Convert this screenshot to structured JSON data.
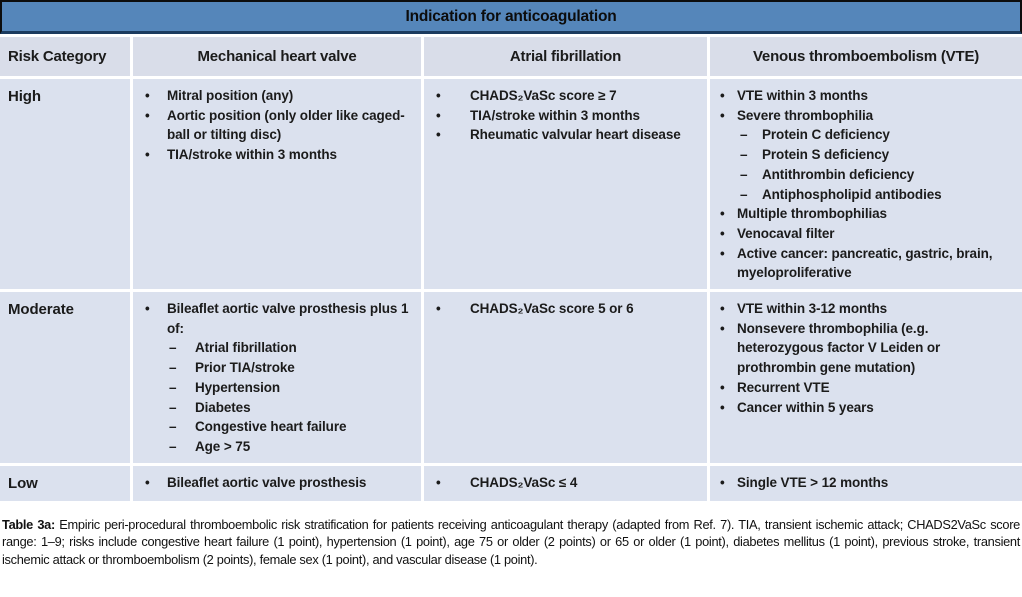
{
  "title": "Indication for anticoagulation",
  "columns": [
    "Risk Category",
    "Mechanical heart valve",
    "Atrial fibrillation",
    "Venous thromboembolism (VTE)"
  ],
  "markers": {
    "1": "•",
    "2": "–"
  },
  "rows": [
    {
      "category": "High",
      "cells": {
        "mechanical": [
          {
            "level": 1,
            "text": "Mitral position (any)"
          },
          {
            "level": 1,
            "text": "Aortic position (only older like caged-ball or tilting disc)"
          },
          {
            "level": 1,
            "text": "TIA/stroke within 3 months"
          }
        ],
        "afib": [
          {
            "level": 1,
            "text": "CHADS₂VaSc score ≥ 7"
          },
          {
            "level": 1,
            "text": "TIA/stroke within 3 months"
          },
          {
            "level": 1,
            "text": "Rheumatic valvular heart disease"
          }
        ],
        "vte": [
          {
            "level": 1,
            "text": "VTE within 3 months"
          },
          {
            "level": 1,
            "text": "Severe thrombophilia"
          },
          {
            "level": 2,
            "text": "Protein C deficiency"
          },
          {
            "level": 2,
            "text": "Protein S deficiency"
          },
          {
            "level": 2,
            "text": "Antithrombin deficiency"
          },
          {
            "level": 2,
            "text": "Antiphospholipid antibodies"
          },
          {
            "level": 1,
            "text": "Multiple thrombophilias"
          },
          {
            "level": 1,
            "text": "Venocaval filter"
          },
          {
            "level": 1,
            "text": "Active cancer: pancreatic, gastric, brain, myeloproliferative"
          }
        ]
      }
    },
    {
      "category": "Moderate",
      "cells": {
        "mechanical": [
          {
            "level": 1,
            "text": "Bileaflet aortic valve prosthesis plus 1 of:"
          },
          {
            "level": 2,
            "text": "Atrial fibrillation"
          },
          {
            "level": 2,
            "text": "Prior TIA/stroke"
          },
          {
            "level": 2,
            "text": "Hypertension"
          },
          {
            "level": 2,
            "text": "Diabetes"
          },
          {
            "level": 2,
            "text": "Congestive heart failure"
          },
          {
            "level": 2,
            "text": "Age > 75"
          }
        ],
        "afib": [
          {
            "level": 1,
            "text": "CHADS₂VaSc score 5 or 6"
          }
        ],
        "vte": [
          {
            "level": 1,
            "text": "VTE within 3-12 months"
          },
          {
            "level": 1,
            "text": "Nonsevere thrombophilia (e.g. heterozygous factor V Leiden or prothrombin gene mutation)"
          },
          {
            "level": 1,
            "text": "Recurrent VTE"
          },
          {
            "level": 1,
            "text": "Cancer within 5 years"
          }
        ]
      }
    },
    {
      "category": "Low",
      "cells": {
        "mechanical": [
          {
            "level": 1,
            "text": "Bileaflet aortic valve prosthesis"
          }
        ],
        "afib": [
          {
            "level": 1,
            "text": "CHADS₂VaSc ≤ 4"
          }
        ],
        "vte": [
          {
            "level": 1,
            "text": "Single VTE > 12 months"
          }
        ]
      }
    }
  ],
  "caption": {
    "label": "Table 3a:",
    "text": "Empiric peri-procedural thromboembolic risk stratification for patients receiving anticoagulant therapy (adapted from Ref. 7). TIA, transient ischemic attack; CHADS2VaSc score range: 1–9; risks include congestive heart failure (1 point), hypertension (1 point), age 75 or older (2 points) or 65 or older (1 point), diabetes mellitus (1 point), previous stroke, transient ischemic attack or thromboembolism (2 points), female sex (1 point), and vascular disease (1 point)."
  },
  "colors": {
    "title_bar": "#5586ba",
    "title_border": "#0d0d0d",
    "title_border_bottom": "#1b3a5e",
    "header_row": "#d9dde9",
    "row_band": "#dbe1ee",
    "row_light": "#e9ecf4",
    "separator": "#ffffff",
    "text": "#1b1b1b"
  }
}
